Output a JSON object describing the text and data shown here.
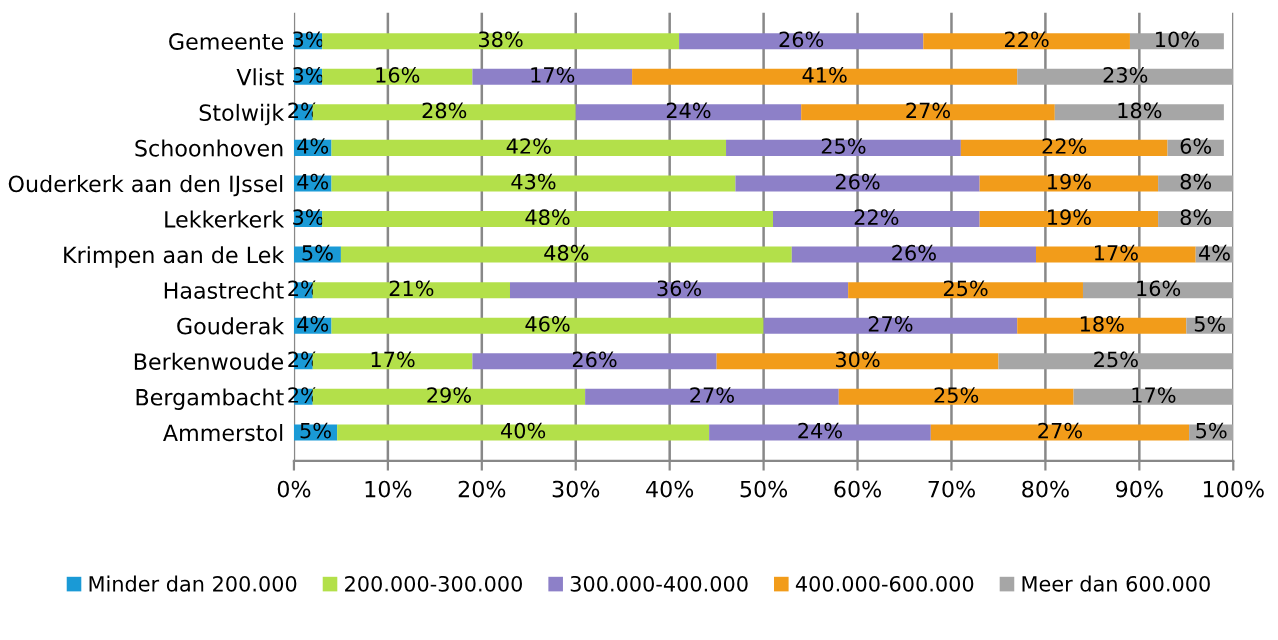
{
  "chart_data": {
    "type": "bar",
    "orientation": "horizontal",
    "stacked": true,
    "categories": [
      "Gemeente",
      "Vlist",
      "Stolwijk",
      "Schoonhoven",
      "Ouderkerk aan den IJssel",
      "Lekkerkerk",
      "Krimpen aan de Lek",
      "Haastrecht",
      "Gouderak",
      "Berkenwoude",
      "Bergambacht",
      "Ammerstol"
    ],
    "series": [
      {
        "name": "Minder dan 200.000",
        "color": "#1a9ad6",
        "values": [
          3,
          3,
          2,
          4,
          4,
          3,
          5,
          2,
          4,
          2,
          2,
          4.6
        ],
        "value_labels": [
          "3%",
          "3%",
          "2%",
          "4%",
          "4%",
          "3%",
          "5%",
          "2%",
          "4%",
          "2%",
          "2%",
          "5%"
        ]
      },
      {
        "name": "200.000-300.000",
        "color": "#b3e04a",
        "values": [
          38,
          16,
          28,
          42,
          43,
          48,
          48,
          21,
          46,
          17,
          29,
          39.6
        ],
        "value_labels": [
          "38%",
          "16%",
          "28%",
          "42%",
          "43%",
          "48%",
          "48%",
          "21%",
          "46%",
          "17%",
          "29%",
          "40%"
        ]
      },
      {
        "name": "300.000-400.000",
        "color": "#8d80c8",
        "values": [
          26,
          17,
          24,
          25,
          26,
          22,
          26,
          36,
          27,
          26,
          27,
          23.6
        ],
        "value_labels": [
          "26%",
          "17%",
          "24%",
          "25%",
          "26%",
          "22%",
          "26%",
          "36%",
          "27%",
          "26%",
          "27%",
          "24%"
        ]
      },
      {
        "name": "400.000-600.000",
        "color": "#f29c1a",
        "values": [
          22,
          41,
          27,
          22,
          19,
          19,
          17,
          25,
          18,
          30,
          25,
          27.5
        ],
        "value_labels": [
          "22%",
          "41%",
          "27%",
          "22%",
          "19%",
          "19%",
          "17%",
          "25%",
          "18%",
          "30%",
          "25%",
          "27%"
        ]
      },
      {
        "name": "Meer dan 600.000",
        "color": "#a6a6a6",
        "values": [
          10,
          23,
          18,
          6,
          8,
          8,
          4,
          16,
          5,
          25,
          17,
          4.7
        ],
        "value_labels": [
          "10%",
          "23%",
          "18%",
          "6%",
          "8%",
          "8%",
          "4%",
          "16%",
          "5%",
          "25%",
          "17%",
          "5%"
        ]
      }
    ],
    "xlim": [
      0,
      100
    ],
    "xticks": [
      {
        "value": 0,
        "label": "0%"
      },
      {
        "value": 10,
        "label": "10%"
      },
      {
        "value": 20,
        "label": "20%"
      },
      {
        "value": 30,
        "label": "30%"
      },
      {
        "value": 40,
        "label": "40%"
      },
      {
        "value": 50,
        "label": "50%"
      },
      {
        "value": 60,
        "label": "60%"
      },
      {
        "value": 70,
        "label": "70%"
      },
      {
        "value": 80,
        "label": "80%"
      },
      {
        "value": 90,
        "label": "90%"
      },
      {
        "value": 100,
        "label": "100%"
      }
    ],
    "grid": "x",
    "legend": "bottom"
  }
}
